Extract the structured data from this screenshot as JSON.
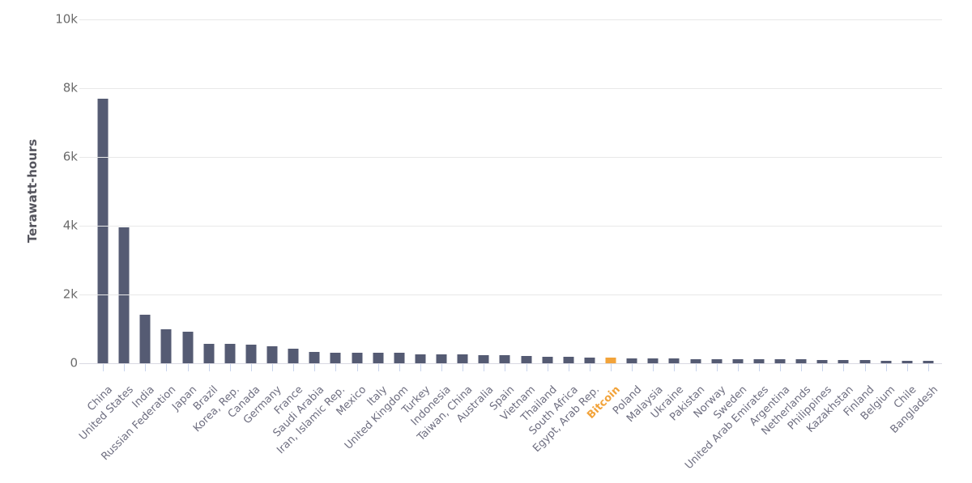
{
  "chart_data": {
    "type": "bar",
    "title": "",
    "xlabel": "",
    "ylabel": "Terawatt-hours",
    "ylim": [
      0,
      10000
    ],
    "ytick_labels": [
      "10k",
      "8k",
      "6k",
      "4k",
      "2k",
      "0"
    ],
    "ytick_values": [
      10000,
      8000,
      6000,
      4000,
      2000,
      0
    ],
    "grid": true,
    "legend": "none",
    "bar_color": "#555b73",
    "highlight": {
      "index": 24,
      "label": "Bitcoin",
      "color": "#f2a33a"
    },
    "categories": [
      "China",
      "United States",
      "India",
      "Russian Federation",
      "Japan",
      "Brazil",
      "Korea, Rep.",
      "Canada",
      "Germany",
      "France",
      "Saudi Arabia",
      "Iran, Islamic Rep.",
      "Mexico",
      "Italy",
      "United Kingdom",
      "Turkey",
      "Indonesia",
      "Taiwan, China",
      "Australia",
      "Spain",
      "Vietnam",
      "Thailand",
      "South Africa",
      "Egypt, Arab Rep.",
      "Bitcoin",
      "Poland",
      "Malaysia",
      "Ukraine",
      "Pakistan",
      "Norway",
      "Sweden",
      "United Arab Emirates",
      "Argentina",
      "Netherlands",
      "Philippines",
      "Kazakhstan",
      "Finland",
      "Belgium",
      "Chile",
      "Bangladesh"
    ],
    "values": [
      7700,
      3950,
      1420,
      980,
      920,
      560,
      555,
      550,
      500,
      430,
      320,
      310,
      305,
      300,
      295,
      265,
      258,
      252,
      240,
      232,
      220,
      198,
      192,
      165,
      155,
      152,
      147,
      134,
      126,
      124,
      123,
      121,
      119,
      111,
      97,
      95,
      84,
      82,
      76,
      70
    ]
  },
  "colors": {
    "background": "#ffffff",
    "gridline": "#e8e8e8",
    "axis_line": "#d9d9e2",
    "tick_mark": "#c9d4ec",
    "y_tick_label": "#6b6b6b",
    "x_tick_label": "#6e6e80",
    "y_axis_title": "#55555e",
    "bar": "#555b73",
    "bitcoin": "#f2a33a"
  }
}
